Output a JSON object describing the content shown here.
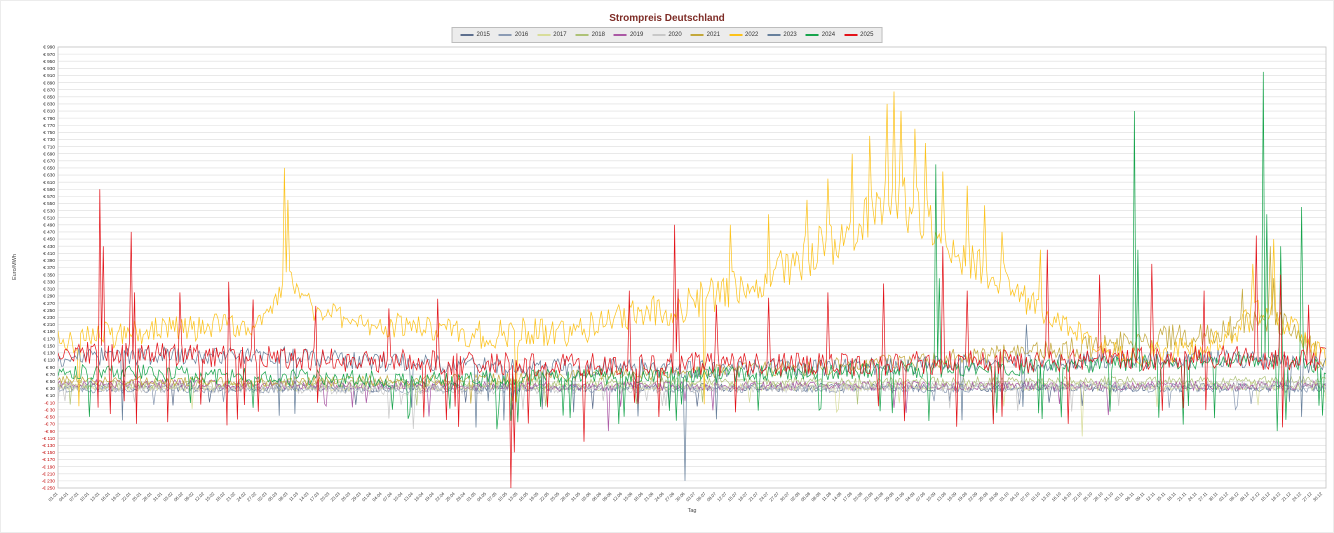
{
  "page": {
    "title": "Strompreis Deutschland"
  },
  "chart_data": {
    "type": "line",
    "title": "Strompreis Deutschland",
    "xlabel": "Tag",
    "ylabel": "Euro/MWh",
    "ylim": [
      -250,
      990
    ],
    "ytick_step": 20,
    "ytick_format": {
      "positive_prefix": "€ ",
      "negative_prefix": "-€ "
    },
    "positive_tick_color": "#1a1a1a",
    "negative_tick_color": "#c00000",
    "grid": true,
    "grid_color": "#dcdcdc",
    "plot_border_color": "#c3c3c3",
    "legend_position": "top",
    "x_ticks": {
      "first": "01.01",
      "last": "30.12",
      "interval_days": 3,
      "count": 122,
      "rotation_deg": -45
    },
    "x_unit": "day of year (01.01 - 31.12)",
    "y_unit": "Euro/MWh",
    "series": [
      {
        "name": "2015",
        "color": "#5d6f8e",
        "seed": 11,
        "base": [
          [
            1,
            33
          ],
          [
            365,
            33
          ]
        ],
        "noise": [
          [
            1,
            12
          ],
          [
            365,
            12
          ]
        ],
        "spikes": [],
        "dip_prob": 0.012,
        "dip_range": [
          5,
          35
        ]
      },
      {
        "name": "2016",
        "color": "#8b9bb4",
        "seed": 22,
        "base": [
          [
            1,
            28
          ],
          [
            365,
            30
          ]
        ],
        "noise": [
          [
            1,
            11
          ],
          [
            365,
            11
          ]
        ],
        "spikes": [],
        "dip_prob": 0.012,
        "dip_range": [
          5,
          30
        ]
      },
      {
        "name": "2017",
        "color": "#d8dd9a",
        "seed": 33,
        "base": [
          [
            1,
            34
          ],
          [
            365,
            36
          ]
        ],
        "noise": [
          [
            1,
            12
          ],
          [
            365,
            12
          ]
        ],
        "spikes": [
          [
            295,
            -105
          ]
        ],
        "dip_prob": 0.015,
        "dip_range": [
          5,
          45
        ]
      },
      {
        "name": "2018",
        "color": "#aec277",
        "seed": 44,
        "base": [
          [
            1,
            40
          ],
          [
            200,
            48
          ],
          [
            365,
            52
          ]
        ],
        "noise": [
          [
            1,
            13
          ],
          [
            365,
            13
          ]
        ],
        "spikes": [],
        "dip_prob": 0.01,
        "dip_range": [
          5,
          30
        ]
      },
      {
        "name": "2019",
        "color": "#ab59a5",
        "seed": 55,
        "base": [
          [
            1,
            45
          ],
          [
            120,
            36
          ],
          [
            365,
            38
          ]
        ],
        "noise": [
          [
            1,
            13
          ],
          [
            365,
            13
          ]
        ],
        "spikes": [
          [
            159,
            -90
          ]
        ],
        "dip_prob": 0.02,
        "dip_range": [
          5,
          50
        ]
      },
      {
        "name": "2020",
        "color": "#c8c8c8",
        "seed": 66,
        "base": [
          [
            1,
            35
          ],
          [
            91,
            25
          ],
          [
            182,
            30
          ],
          [
            365,
            42
          ]
        ],
        "noise": [
          [
            1,
            13
          ],
          [
            365,
            13
          ]
        ],
        "spikes": [
          [
            96,
            -55
          ],
          [
            103,
            -84
          ]
        ],
        "dip_prob": 0.02,
        "dip_range": [
          5,
          40
        ]
      },
      {
        "name": "2021",
        "color": "#c3a83c",
        "seed": 77,
        "base": [
          [
            1,
            55
          ],
          [
            59,
            47
          ],
          [
            120,
            55
          ],
          [
            181,
            75
          ],
          [
            243,
            100
          ],
          [
            273,
            125
          ],
          [
            304,
            155
          ],
          [
            334,
            190
          ],
          [
            350,
            230
          ],
          [
            357,
            180
          ],
          [
            365,
            100
          ]
        ],
        "noise": [
          [
            1,
            12
          ],
          [
            181,
            18
          ],
          [
            304,
            35
          ],
          [
            365,
            40
          ]
        ],
        "spikes": [
          [
            341,
            310
          ],
          [
            349,
            430
          ],
          [
            350,
            340
          ]
        ],
        "dip_prob": 0.004,
        "dip_range": [
          5,
          20
        ]
      },
      {
        "name": "2022",
        "color": "#fcc21a",
        "seed": 88,
        "base": [
          [
            1,
            165
          ],
          [
            31,
            195
          ],
          [
            59,
            210
          ],
          [
            67,
            340
          ],
          [
            75,
            250
          ],
          [
            90,
            215
          ],
          [
            120,
            180
          ],
          [
            151,
            195
          ],
          [
            181,
            265
          ],
          [
            200,
            330
          ],
          [
            212,
            380
          ],
          [
            226,
            460
          ],
          [
            238,
            560
          ],
          [
            246,
            540
          ],
          [
            253,
            470
          ],
          [
            259,
            420
          ],
          [
            270,
            350
          ],
          [
            281,
            265
          ],
          [
            300,
            150
          ],
          [
            312,
            120
          ],
          [
            330,
            145
          ],
          [
            348,
            255
          ],
          [
            356,
            195
          ],
          [
            365,
            115
          ]
        ],
        "noise": [
          [
            1,
            40
          ],
          [
            90,
            35
          ],
          [
            181,
            50
          ],
          [
            212,
            65
          ],
          [
            240,
            85
          ],
          [
            258,
            65
          ],
          [
            281,
            45
          ],
          [
            300,
            28
          ],
          [
            348,
            45
          ],
          [
            365,
            25
          ]
        ],
        "spikes": [
          [
            66,
            650
          ],
          [
            67,
            560
          ],
          [
            194,
            490
          ],
          [
            205,
            520
          ],
          [
            216,
            560
          ],
          [
            222,
            620
          ],
          [
            229,
            690
          ],
          [
            234,
            740
          ],
          [
            239,
            830
          ],
          [
            241,
            865
          ],
          [
            243,
            810
          ],
          [
            247,
            760
          ],
          [
            250,
            720
          ],
          [
            255,
            640
          ],
          [
            262,
            600
          ],
          [
            267,
            545
          ],
          [
            272,
            470
          ],
          [
            283,
            420
          ],
          [
            344,
            380
          ],
          [
            350,
            450
          ]
        ],
        "dip_prob": 0.002,
        "dip_range": [
          5,
          20
        ]
      },
      {
        "name": "2023",
        "color": "#67809c",
        "seed": 99,
        "base": [
          [
            1,
            118
          ],
          [
            60,
            125
          ],
          [
            91,
            105
          ],
          [
            121,
            95
          ],
          [
            151,
            90
          ],
          [
            181,
            85
          ],
          [
            212,
            88
          ],
          [
            243,
            95
          ],
          [
            273,
            100
          ],
          [
            304,
            105
          ],
          [
            334,
            115
          ],
          [
            365,
            95
          ]
        ],
        "noise": [
          [
            1,
            26
          ],
          [
            365,
            26
          ]
        ],
        "spikes": [
          [
            121,
            -80
          ],
          [
            129,
            -60
          ],
          [
            181,
            -230
          ],
          [
            279,
            210
          ]
        ],
        "dip_prob": 0.02,
        "dip_range": [
          5,
          60
        ]
      },
      {
        "name": "2024",
        "color": "#17a44c",
        "seed": 101,
        "base": [
          [
            1,
            82
          ],
          [
            45,
            66
          ],
          [
            75,
            60
          ],
          [
            105,
            56
          ],
          [
            135,
            60
          ],
          [
            166,
            66
          ],
          [
            196,
            70
          ],
          [
            227,
            78
          ],
          [
            258,
            85
          ],
          [
            288,
            92
          ],
          [
            319,
            105
          ],
          [
            349,
            112
          ],
          [
            365,
            88
          ]
        ],
        "noise": [
          [
            1,
            24
          ],
          [
            365,
            24
          ]
        ],
        "spikes": [
          [
            127,
            -85
          ],
          [
            162,
            -70
          ],
          [
            253,
            660
          ],
          [
            254,
            340
          ],
          [
            310,
            810
          ],
          [
            311,
            420
          ],
          [
            347,
            920
          ],
          [
            348,
            520
          ],
          [
            351,
            -90
          ],
          [
            352,
            430
          ],
          [
            358,
            540
          ]
        ],
        "dip_prob": 0.05,
        "dip_range": [
          5,
          75
        ]
      },
      {
        "name": "2025",
        "color": "#e31219",
        "seed": 113,
        "base": [
          [
            1,
            115
          ],
          [
            15,
            135
          ],
          [
            45,
            120
          ],
          [
            90,
            108
          ],
          [
            120,
            100
          ],
          [
            151,
            95
          ],
          [
            181,
            100
          ],
          [
            212,
            96
          ],
          [
            243,
            100
          ],
          [
            273,
            105
          ],
          [
            304,
            110
          ],
          [
            334,
            118
          ],
          [
            365,
            112
          ]
        ],
        "noise": [
          [
            1,
            34
          ],
          [
            365,
            34
          ]
        ],
        "spikes": [
          [
            13,
            590
          ],
          [
            14,
            430
          ],
          [
            22,
            470
          ],
          [
            23,
            300
          ],
          [
            36,
            300
          ],
          [
            50,
            330
          ],
          [
            57,
            280
          ],
          [
            75,
            262
          ],
          [
            96,
            255
          ],
          [
            110,
            282
          ],
          [
            131,
            -250
          ],
          [
            132,
            -150
          ],
          [
            152,
            -120
          ],
          [
            165,
            305
          ],
          [
            178,
            490
          ],
          [
            179,
            310
          ],
          [
            190,
            265
          ],
          [
            205,
            285
          ],
          [
            222,
            300
          ],
          [
            238,
            325
          ],
          [
            255,
            430
          ],
          [
            262,
            305
          ],
          [
            285,
            420
          ],
          [
            300,
            350
          ],
          [
            315,
            380
          ],
          [
            330,
            305
          ],
          [
            345,
            460
          ],
          [
            352,
            350
          ],
          [
            360,
            265
          ]
        ],
        "dip_prob": 0.05,
        "dip_range": [
          5,
          80
        ]
      }
    ]
  }
}
